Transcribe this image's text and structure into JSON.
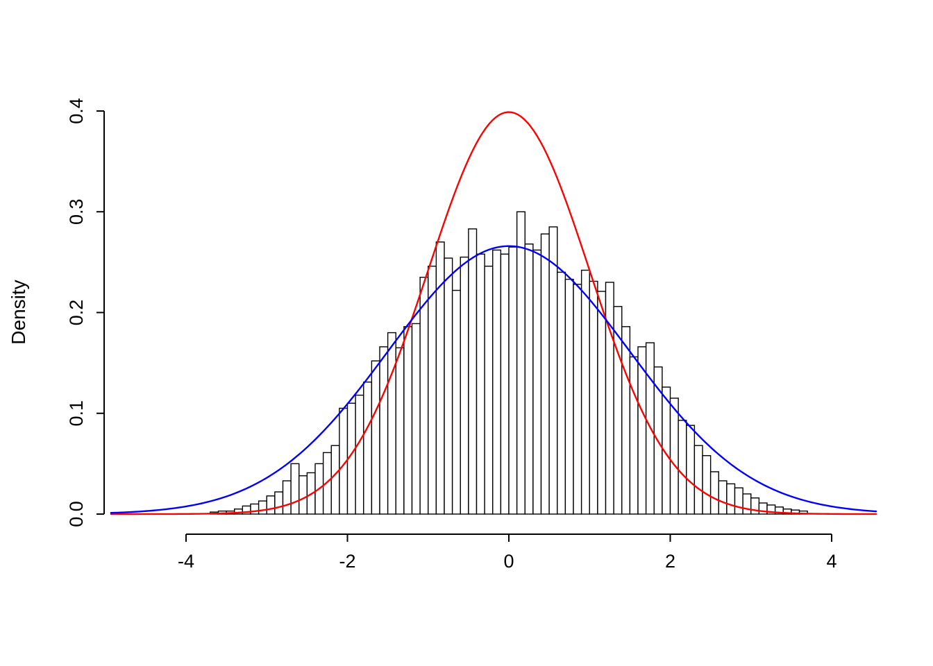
{
  "figure": {
    "background": "#ffffff"
  },
  "chart_data": {
    "type": "bar",
    "subtype": "histogram-with-density-curves",
    "title": "",
    "xlabel": "",
    "ylabel": "Density",
    "xlim": [
      -4.93,
      4.57
    ],
    "ylim": [
      0,
      0.4
    ],
    "grid": false,
    "x_axis": {
      "ticks": [
        {
          "value": -4,
          "label": "-4"
        },
        {
          "value": -2,
          "label": "-2"
        },
        {
          "value": 0,
          "label": "0"
        },
        {
          "value": 2,
          "label": "2"
        },
        {
          "value": 4,
          "label": "4"
        }
      ]
    },
    "y_axis": {
      "title": "Density",
      "ticks": [
        {
          "value": 0.0,
          "label": "0.0"
        },
        {
          "value": 0.1,
          "label": "0.1"
        },
        {
          "value": 0.2,
          "label": "0.2"
        },
        {
          "value": 0.3,
          "label": "0.3"
        },
        {
          "value": 0.4,
          "label": "0.4"
        }
      ]
    },
    "histogram": {
      "bin_start": -3.7,
      "bin_width": 0.1,
      "bar_fill": "#ffffff",
      "bar_stroke": "#000000",
      "densities": [
        0.002,
        0.003,
        0.003,
        0.005,
        0.008,
        0.01,
        0.013,
        0.018,
        0.022,
        0.033,
        0.05,
        0.038,
        0.041,
        0.05,
        0.061,
        0.068,
        0.105,
        0.11,
        0.118,
        0.131,
        0.152,
        0.166,
        0.18,
        0.165,
        0.186,
        0.189,
        0.235,
        0.246,
        0.27,
        0.254,
        0.222,
        0.255,
        0.283,
        0.258,
        0.246,
        0.262,
        0.258,
        0.265,
        0.3,
        0.268,
        0.262,
        0.278,
        0.285,
        0.24,
        0.233,
        0.228,
        0.242,
        0.231,
        0.221,
        0.23,
        0.206,
        0.186,
        0.156,
        0.166,
        0.17,
        0.146,
        0.126,
        0.115,
        0.093,
        0.088,
        0.068,
        0.058,
        0.042,
        0.033,
        0.03,
        0.026,
        0.02,
        0.016,
        0.011,
        0.009,
        0.007,
        0.005,
        0.004,
        0.003
      ]
    },
    "curves": [
      {
        "name": "normal-mean0-sd1",
        "color": "#ff0000",
        "mean": 0,
        "sd": 1.0
      },
      {
        "name": "normal-mean0-sd1.5",
        "color": "#0000ff",
        "mean": 0,
        "sd": 1.5
      }
    ]
  }
}
